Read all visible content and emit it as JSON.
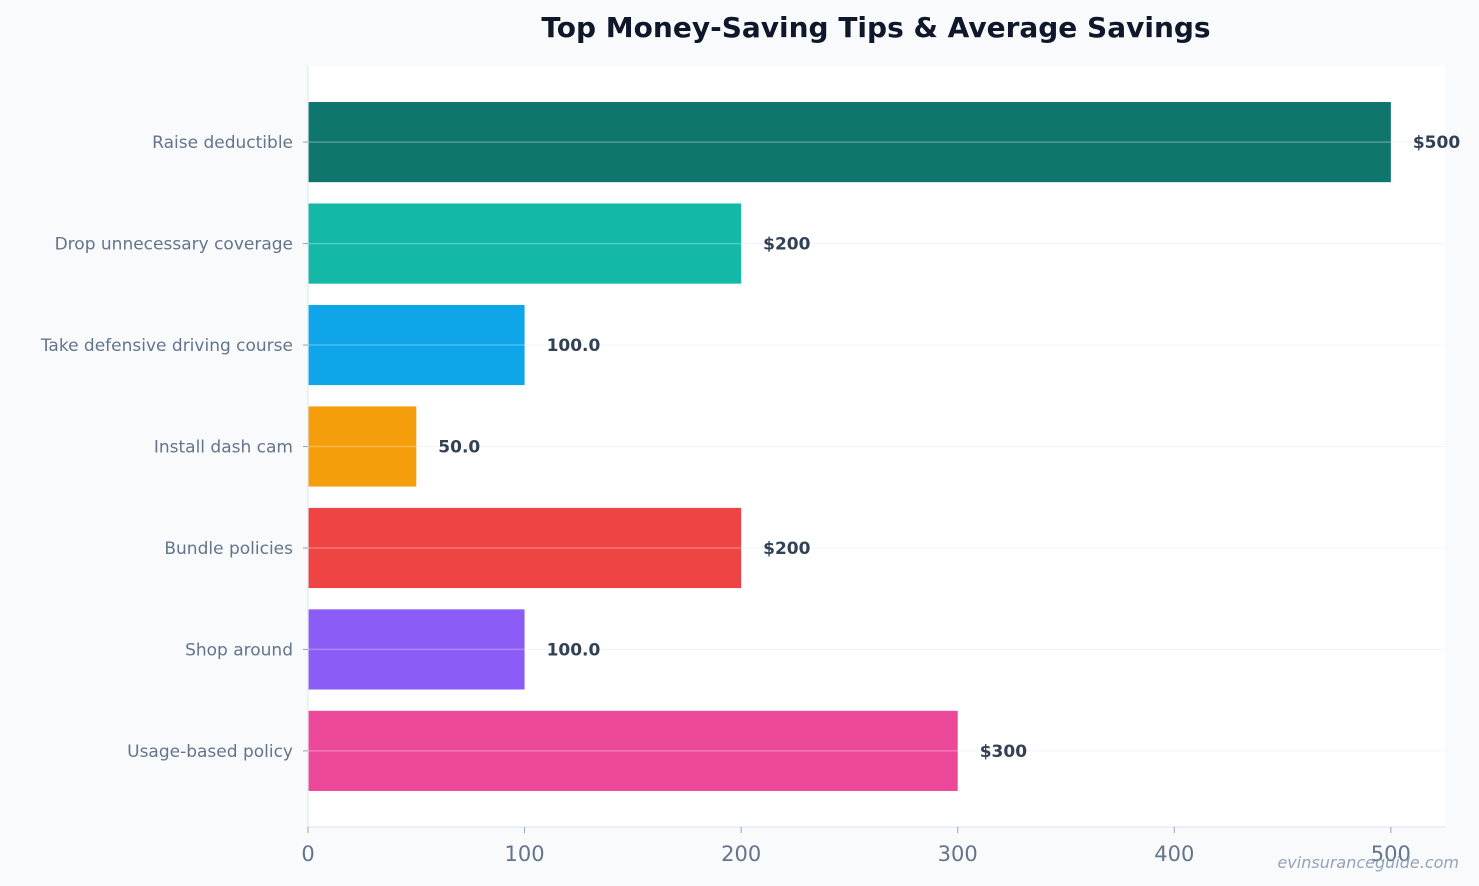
{
  "chart_data": {
    "type": "bar",
    "orientation": "horizontal",
    "title": "Top Money-Saving Tips & Average Savings",
    "xlabel": "",
    "ylabel": "",
    "categories": [
      "Raise deductible",
      "Drop unnecessary coverage",
      "Take defensive driving course",
      "Install dash cam",
      "Bundle policies",
      "Shop around",
      "Usage-based policy"
    ],
    "values": [
      500,
      200,
      100,
      50,
      200,
      100,
      300
    ],
    "value_labels": [
      "$500",
      "$200",
      "100.0",
      "50.0",
      "$200",
      "100.0",
      "$300"
    ],
    "colors": [
      "#0f766e",
      "#14b8a6",
      "#0ea5e9",
      "#f59e0b",
      "#ef4444",
      "#8b5cf6",
      "#ec4899"
    ],
    "xlim": [
      0,
      525
    ],
    "xticks": [
      0,
      100,
      200,
      300,
      400,
      500
    ],
    "grid": true,
    "watermark": "evinsuranceguide.com"
  }
}
